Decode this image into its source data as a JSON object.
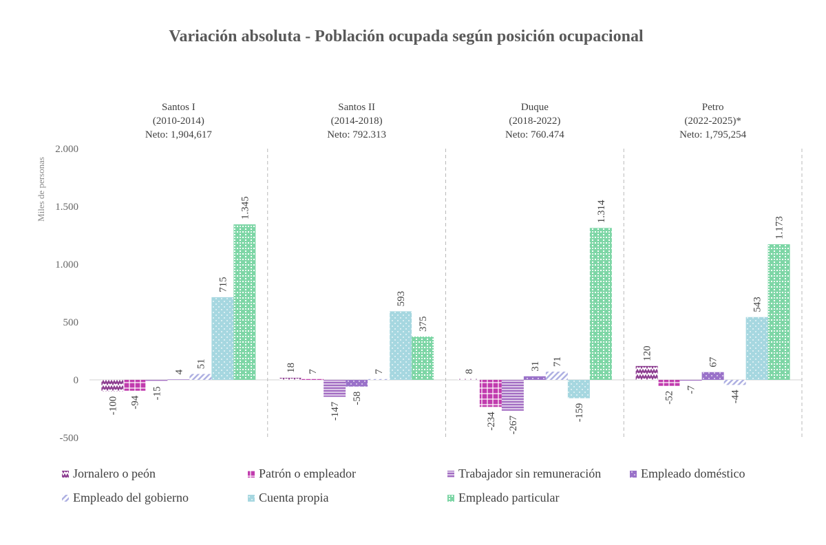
{
  "chart_data": {
    "type": "bar",
    "title": "Variación absoluta - Población ocupada según posición ocupacional",
    "y_label": "Miles de personas",
    "categories": [
      "Santos I",
      "Santos II",
      "Duque",
      "Petro"
    ],
    "periods": [
      "(2010-2014)",
      "(2014-2018)",
      "(2018-2022)",
      "(2022-2025)*"
    ],
    "neto": [
      "Neto: 1,904,617",
      "Neto: 792.313",
      "Neto: 760.474",
      "Neto: 1,795,254"
    ],
    "ylim": [
      -500,
      2000
    ],
    "yticks": [
      {
        "value": 2000,
        "label": "2.000"
      },
      {
        "value": 1500,
        "label": "1.500"
      },
      {
        "value": 1000,
        "label": "1.000"
      },
      500,
      0,
      -500
    ],
    "series": [
      {
        "name": "Jornalero o peón",
        "color": "#8b3b8f",
        "pattern": "zigzag",
        "values": [
          -100,
          18,
          8,
          120
        ]
      },
      {
        "name": "Patrón o empleador",
        "color": "#c13cae",
        "pattern": "grid",
        "values": [
          -94,
          7,
          -234,
          -52
        ]
      },
      {
        "name": "Trabajador sin remuneración",
        "color": "#a26cc2",
        "pattern": "hlines",
        "values": [
          -15,
          -147,
          -267,
          -7
        ]
      },
      {
        "name": "Empleado doméstico",
        "color": "#9a72c9",
        "pattern": "dots",
        "values": [
          4,
          -58,
          31,
          67
        ]
      },
      {
        "name": "Empleado del gobierno",
        "color": "#aeb0e2",
        "pattern": "diag",
        "values": [
          51,
          7,
          71,
          -44
        ]
      },
      {
        "name": "Cuenta propia",
        "color": "#a6d7e0",
        "pattern": "dots",
        "values": [
          715,
          593,
          -159,
          543
        ]
      },
      {
        "name": "Empleado particular",
        "color": "#7ed6a6",
        "pattern": "checker",
        "values": [
          1345,
          375,
          1314,
          1173
        ],
        "value_labels": [
          "1.345",
          "375",
          "1.314",
          "1.173"
        ]
      }
    ]
  }
}
